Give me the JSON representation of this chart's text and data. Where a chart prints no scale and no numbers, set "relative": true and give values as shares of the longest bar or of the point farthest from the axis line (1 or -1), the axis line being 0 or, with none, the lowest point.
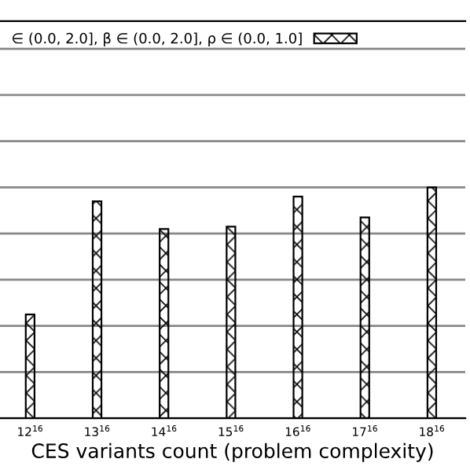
{
  "chart_data": {
    "type": "bar",
    "relative": true,
    "xlabel": "CES variants count (problem complexity)",
    "categories": [
      "12$^{16}$",
      "13$^{16}$",
      "14$^{16}$",
      "15$^{16}$",
      "16$^{16}$",
      "17$^{16}$",
      "18$^{16}$"
    ],
    "series": [
      {
        "name": "∈ (0.0, 2.0], β ∈ (0.0, 2.0], ρ ∈ (0.0, 1.0]",
        "color": "#000000",
        "values": [
          0.45,
          0.94,
          0.82,
          0.83,
          0.96,
          0.87,
          1.0
        ]
      }
    ],
    "grid": "y",
    "legend": "top left"
  }
}
